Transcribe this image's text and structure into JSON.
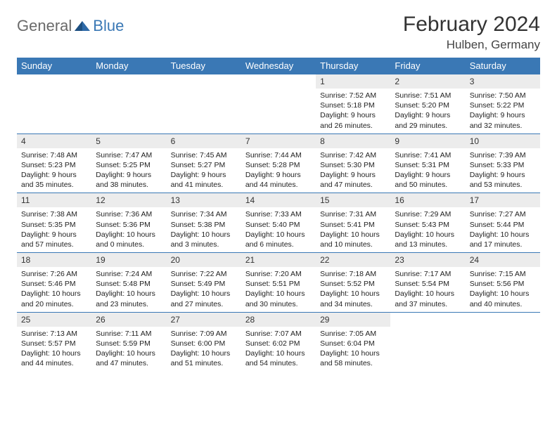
{
  "logo": {
    "text1": "General",
    "text2": "Blue"
  },
  "title": "February 2024",
  "location": "Hulben, Germany",
  "day_headers": [
    "Sunday",
    "Monday",
    "Tuesday",
    "Wednesday",
    "Thursday",
    "Friday",
    "Saturday"
  ],
  "colors": {
    "header_bg": "#3a78b5",
    "header_text": "#ffffff",
    "daynum_bg": "#ececec",
    "row_border": "#3a78b5",
    "logo_gray": "#6a6a6a",
    "logo_blue": "#3a78b5"
  },
  "weeks": [
    [
      {
        "n": "",
        "sr": "",
        "ss": "",
        "dl": ""
      },
      {
        "n": "",
        "sr": "",
        "ss": "",
        "dl": ""
      },
      {
        "n": "",
        "sr": "",
        "ss": "",
        "dl": ""
      },
      {
        "n": "",
        "sr": "",
        "ss": "",
        "dl": ""
      },
      {
        "n": "1",
        "sr": "Sunrise: 7:52 AM",
        "ss": "Sunset: 5:18 PM",
        "dl": "Daylight: 9 hours and 26 minutes."
      },
      {
        "n": "2",
        "sr": "Sunrise: 7:51 AM",
        "ss": "Sunset: 5:20 PM",
        "dl": "Daylight: 9 hours and 29 minutes."
      },
      {
        "n": "3",
        "sr": "Sunrise: 7:50 AM",
        "ss": "Sunset: 5:22 PM",
        "dl": "Daylight: 9 hours and 32 minutes."
      }
    ],
    [
      {
        "n": "4",
        "sr": "Sunrise: 7:48 AM",
        "ss": "Sunset: 5:23 PM",
        "dl": "Daylight: 9 hours and 35 minutes."
      },
      {
        "n": "5",
        "sr": "Sunrise: 7:47 AM",
        "ss": "Sunset: 5:25 PM",
        "dl": "Daylight: 9 hours and 38 minutes."
      },
      {
        "n": "6",
        "sr": "Sunrise: 7:45 AM",
        "ss": "Sunset: 5:27 PM",
        "dl": "Daylight: 9 hours and 41 minutes."
      },
      {
        "n": "7",
        "sr": "Sunrise: 7:44 AM",
        "ss": "Sunset: 5:28 PM",
        "dl": "Daylight: 9 hours and 44 minutes."
      },
      {
        "n": "8",
        "sr": "Sunrise: 7:42 AM",
        "ss": "Sunset: 5:30 PM",
        "dl": "Daylight: 9 hours and 47 minutes."
      },
      {
        "n": "9",
        "sr": "Sunrise: 7:41 AM",
        "ss": "Sunset: 5:31 PM",
        "dl": "Daylight: 9 hours and 50 minutes."
      },
      {
        "n": "10",
        "sr": "Sunrise: 7:39 AM",
        "ss": "Sunset: 5:33 PM",
        "dl": "Daylight: 9 hours and 53 minutes."
      }
    ],
    [
      {
        "n": "11",
        "sr": "Sunrise: 7:38 AM",
        "ss": "Sunset: 5:35 PM",
        "dl": "Daylight: 9 hours and 57 minutes."
      },
      {
        "n": "12",
        "sr": "Sunrise: 7:36 AM",
        "ss": "Sunset: 5:36 PM",
        "dl": "Daylight: 10 hours and 0 minutes."
      },
      {
        "n": "13",
        "sr": "Sunrise: 7:34 AM",
        "ss": "Sunset: 5:38 PM",
        "dl": "Daylight: 10 hours and 3 minutes."
      },
      {
        "n": "14",
        "sr": "Sunrise: 7:33 AM",
        "ss": "Sunset: 5:40 PM",
        "dl": "Daylight: 10 hours and 6 minutes."
      },
      {
        "n": "15",
        "sr": "Sunrise: 7:31 AM",
        "ss": "Sunset: 5:41 PM",
        "dl": "Daylight: 10 hours and 10 minutes."
      },
      {
        "n": "16",
        "sr": "Sunrise: 7:29 AM",
        "ss": "Sunset: 5:43 PM",
        "dl": "Daylight: 10 hours and 13 minutes."
      },
      {
        "n": "17",
        "sr": "Sunrise: 7:27 AM",
        "ss": "Sunset: 5:44 PM",
        "dl": "Daylight: 10 hours and 17 minutes."
      }
    ],
    [
      {
        "n": "18",
        "sr": "Sunrise: 7:26 AM",
        "ss": "Sunset: 5:46 PM",
        "dl": "Daylight: 10 hours and 20 minutes."
      },
      {
        "n": "19",
        "sr": "Sunrise: 7:24 AM",
        "ss": "Sunset: 5:48 PM",
        "dl": "Daylight: 10 hours and 23 minutes."
      },
      {
        "n": "20",
        "sr": "Sunrise: 7:22 AM",
        "ss": "Sunset: 5:49 PM",
        "dl": "Daylight: 10 hours and 27 minutes."
      },
      {
        "n": "21",
        "sr": "Sunrise: 7:20 AM",
        "ss": "Sunset: 5:51 PM",
        "dl": "Daylight: 10 hours and 30 minutes."
      },
      {
        "n": "22",
        "sr": "Sunrise: 7:18 AM",
        "ss": "Sunset: 5:52 PM",
        "dl": "Daylight: 10 hours and 34 minutes."
      },
      {
        "n": "23",
        "sr": "Sunrise: 7:17 AM",
        "ss": "Sunset: 5:54 PM",
        "dl": "Daylight: 10 hours and 37 minutes."
      },
      {
        "n": "24",
        "sr": "Sunrise: 7:15 AM",
        "ss": "Sunset: 5:56 PM",
        "dl": "Daylight: 10 hours and 40 minutes."
      }
    ],
    [
      {
        "n": "25",
        "sr": "Sunrise: 7:13 AM",
        "ss": "Sunset: 5:57 PM",
        "dl": "Daylight: 10 hours and 44 minutes."
      },
      {
        "n": "26",
        "sr": "Sunrise: 7:11 AM",
        "ss": "Sunset: 5:59 PM",
        "dl": "Daylight: 10 hours and 47 minutes."
      },
      {
        "n": "27",
        "sr": "Sunrise: 7:09 AM",
        "ss": "Sunset: 6:00 PM",
        "dl": "Daylight: 10 hours and 51 minutes."
      },
      {
        "n": "28",
        "sr": "Sunrise: 7:07 AM",
        "ss": "Sunset: 6:02 PM",
        "dl": "Daylight: 10 hours and 54 minutes."
      },
      {
        "n": "29",
        "sr": "Sunrise: 7:05 AM",
        "ss": "Sunset: 6:04 PM",
        "dl": "Daylight: 10 hours and 58 minutes."
      },
      {
        "n": "",
        "sr": "",
        "ss": "",
        "dl": ""
      },
      {
        "n": "",
        "sr": "",
        "ss": "",
        "dl": ""
      }
    ]
  ]
}
